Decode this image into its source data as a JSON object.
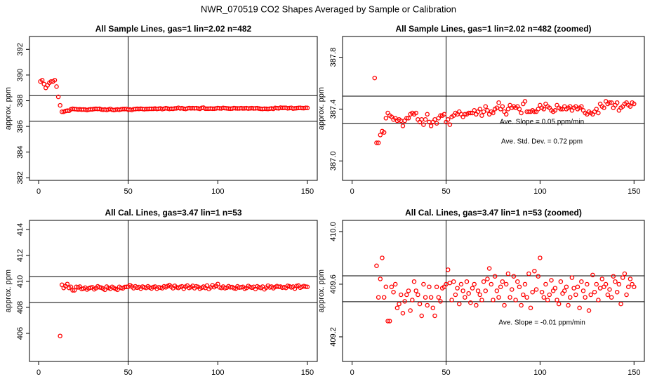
{
  "suptitle": "NWR_070519  CO2 Shapes Averaged by Sample or Calibration",
  "chart_data": [
    {
      "type": "scatter",
      "title": "All Sample Lines, gas=1 lin=2.02 n=482",
      "y_label": "approx. ppm",
      "color": "#ff0000",
      "xlim": [
        -5.1,
        155.5
      ],
      "ylim": [
        381.8,
        393
      ],
      "xticks": [
        0,
        50,
        100,
        150
      ],
      "yticks": [
        382,
        384,
        386,
        388,
        390,
        392
      ],
      "hlines": [
        388.4,
        386.4
      ],
      "vline": 50,
      "annotations": [],
      "x": [
        1,
        2,
        3,
        4,
        5,
        6,
        7,
        8,
        9,
        10,
        11,
        12,
        13,
        14,
        15,
        16,
        17,
        18,
        19,
        20,
        21,
        22,
        23,
        24,
        25,
        26,
        27,
        28,
        29,
        30,
        31,
        32,
        33,
        34,
        35,
        36,
        37,
        38,
        39,
        40,
        41,
        42,
        43,
        44,
        45,
        46,
        47,
        48,
        49,
        50,
        51,
        52,
        53,
        54,
        55,
        56,
        57,
        58,
        59,
        60,
        61,
        62,
        63,
        64,
        65,
        66,
        67,
        68,
        69,
        70,
        71,
        72,
        73,
        74,
        75,
        76,
        77,
        78,
        79,
        80,
        81,
        82,
        83,
        84,
        85,
        86,
        87,
        88,
        89,
        90,
        91,
        92,
        93,
        94,
        95,
        96,
        97,
        98,
        99,
        100,
        101,
        102,
        103,
        104,
        105,
        106,
        107,
        108,
        109,
        110,
        111,
        112,
        113,
        114,
        115,
        116,
        117,
        118,
        119,
        120,
        121,
        122,
        123,
        124,
        125,
        126,
        127,
        128,
        129,
        130,
        131,
        132,
        133,
        134,
        135,
        136,
        137,
        138,
        139,
        140,
        141,
        142,
        143,
        144,
        145,
        146,
        147,
        148,
        149,
        150
      ],
      "values": [
        389.5,
        389.6,
        389.3,
        389.0,
        389.2,
        389.4,
        389.5,
        389.5,
        389.6,
        389.1,
        388.3,
        387.64,
        387.14,
        387.14,
        387.2,
        387.23,
        387.22,
        387.33,
        387.37,
        387.35,
        387.34,
        387.32,
        387.33,
        387.31,
        387.32,
        387.31,
        387.27,
        387.31,
        387.33,
        387.33,
        387.36,
        387.37,
        387.36,
        387.37,
        387.32,
        387.3,
        387.32,
        387.28,
        387.32,
        387.36,
        387.3,
        387.27,
        387.3,
        387.32,
        387.29,
        387.33,
        387.35,
        387.35,
        387.36,
        387.3,
        387.32,
        387.28,
        387.34,
        387.35,
        387.37,
        387.36,
        387.38,
        387.36,
        387.34,
        387.36,
        387.36,
        387.37,
        387.37,
        387.37,
        387.39,
        387.36,
        387.38,
        387.4,
        387.35,
        387.38,
        387.42,
        387.39,
        387.36,
        387.38,
        387.37,
        387.4,
        387.41,
        387.45,
        387.4,
        387.42,
        387.38,
        387.36,
        387.4,
        387.43,
        387.41,
        387.42,
        387.41,
        387.42,
        387.4,
        387.37,
        387.44,
        387.46,
        387.38,
        387.38,
        387.38,
        387.39,
        387.38,
        387.38,
        387.4,
        387.43,
        387.41,
        387.4,
        387.44,
        387.42,
        387.41,
        387.39,
        387.38,
        387.39,
        387.43,
        387.41,
        387.4,
        387.4,
        387.42,
        387.4,
        387.41,
        387.42,
        387.39,
        387.41,
        387.42,
        387.4,
        387.41,
        387.42,
        387.39,
        387.37,
        387.36,
        387.38,
        387.37,
        387.36,
        387.38,
        387.4,
        387.37,
        387.44,
        387.42,
        387.41,
        387.46,
        387.44,
        387.45,
        387.45,
        387.41,
        387.43,
        387.45,
        387.39,
        387.41,
        387.42,
        387.44,
        387.45,
        387.43,
        387.42,
        387.45,
        387.44
      ]
    },
    {
      "type": "scatter",
      "title": "All Sample Lines, gas=1 lin=2.02 n=482 (zoomed)",
      "y_label": "approx. ppm",
      "color": "#ff0000",
      "xlim": [
        -5.1,
        155.5
      ],
      "ylim": [
        386.85,
        387.96
      ],
      "xticks": [
        0,
        50,
        100,
        150
      ],
      "yticks": [
        {
          "value": 387,
          "label": "387.0"
        },
        {
          "value": 387.4,
          "label": "387.4"
        },
        {
          "value": 387.8,
          "label": "387.8"
        }
      ],
      "hlines": [
        387.5,
        387.29
      ],
      "vline": 50,
      "annotations": [
        "Ave. Slope =  0.05  ppm/min",
        "Ave. Std. Dev. =  0.72  ppm"
      ],
      "x": [
        12,
        13,
        14,
        15,
        16,
        17,
        18,
        19,
        20,
        21,
        22,
        23,
        24,
        25,
        26,
        27,
        28,
        29,
        30,
        31,
        32,
        33,
        34,
        35,
        36,
        37,
        38,
        39,
        40,
        41,
        42,
        43,
        44,
        45,
        46,
        47,
        48,
        49,
        50,
        51,
        52,
        53,
        54,
        55,
        56,
        57,
        58,
        59,
        60,
        61,
        62,
        63,
        64,
        65,
        66,
        67,
        68,
        69,
        70,
        71,
        72,
        73,
        74,
        75,
        76,
        77,
        78,
        79,
        80,
        81,
        82,
        83,
        84,
        85,
        86,
        87,
        88,
        89,
        90,
        91,
        92,
        93,
        94,
        95,
        96,
        97,
        98,
        99,
        100,
        101,
        102,
        103,
        104,
        105,
        106,
        107,
        108,
        109,
        110,
        111,
        112,
        113,
        114,
        115,
        116,
        117,
        118,
        119,
        120,
        121,
        122,
        123,
        124,
        125,
        126,
        127,
        128,
        129,
        130,
        131,
        132,
        133,
        134,
        135,
        136,
        137,
        138,
        139,
        140,
        141,
        142,
        143,
        144,
        145,
        146,
        147,
        148,
        149,
        150
      ],
      "values": [
        387.64,
        387.14,
        387.14,
        387.2,
        387.23,
        387.22,
        387.33,
        387.37,
        387.35,
        387.34,
        387.32,
        387.33,
        387.31,
        387.32,
        387.31,
        387.27,
        387.31,
        387.33,
        387.33,
        387.36,
        387.37,
        387.36,
        387.37,
        387.32,
        387.3,
        387.32,
        387.28,
        387.32,
        387.36,
        387.3,
        387.27,
        387.3,
        387.32,
        387.29,
        387.33,
        387.35,
        387.35,
        387.36,
        387.3,
        387.32,
        387.28,
        387.34,
        387.35,
        387.37,
        387.36,
        387.38,
        387.36,
        387.34,
        387.36,
        387.36,
        387.37,
        387.37,
        387.37,
        387.39,
        387.36,
        387.38,
        387.4,
        387.35,
        387.38,
        387.42,
        387.39,
        387.36,
        387.38,
        387.37,
        387.4,
        387.41,
        387.45,
        387.4,
        387.42,
        387.38,
        387.36,
        387.4,
        387.43,
        387.41,
        387.42,
        387.41,
        387.42,
        387.4,
        387.37,
        387.44,
        387.46,
        387.38,
        387.38,
        387.38,
        387.39,
        387.38,
        387.38,
        387.4,
        387.43,
        387.41,
        387.4,
        387.44,
        387.42,
        387.41,
        387.39,
        387.38,
        387.39,
        387.43,
        387.41,
        387.4,
        387.4,
        387.42,
        387.4,
        387.41,
        387.42,
        387.39,
        387.41,
        387.42,
        387.4,
        387.41,
        387.42,
        387.39,
        387.37,
        387.36,
        387.38,
        387.37,
        387.36,
        387.38,
        387.4,
        387.37,
        387.44,
        387.42,
        387.41,
        387.46,
        387.44,
        387.45,
        387.45,
        387.41,
        387.43,
        387.45,
        387.39,
        387.41,
        387.42,
        387.44,
        387.45,
        387.43,
        387.42,
        387.45,
        387.44
      ]
    },
    {
      "type": "scatter",
      "title": "All Cal. Lines, gas=3.47 lin=1 n=53",
      "y_label": "approx. ppm",
      "color": "#ff0000",
      "xlim": [
        -5.1,
        155.5
      ],
      "ylim": [
        403.84,
        414.7
      ],
      "xticks": [
        0,
        50,
        100,
        150
      ],
      "yticks": [
        406,
        408,
        410,
        412,
        414
      ],
      "hlines": [
        410.38,
        408.38
      ],
      "vline": 50,
      "annotations": [],
      "x": [
        12,
        13,
        14,
        15,
        16,
        17,
        18,
        19,
        20,
        21,
        22,
        23,
        24,
        25,
        26,
        27,
        28,
        29,
        30,
        31,
        32,
        33,
        34,
        35,
        36,
        37,
        38,
        39,
        40,
        41,
        42,
        43,
        44,
        45,
        46,
        47,
        48,
        49,
        50,
        51,
        52,
        53,
        54,
        55,
        56,
        57,
        58,
        59,
        60,
        61,
        62,
        63,
        64,
        65,
        66,
        67,
        68,
        69,
        70,
        71,
        72,
        73,
        74,
        75,
        76,
        77,
        78,
        79,
        80,
        81,
        82,
        83,
        84,
        85,
        86,
        87,
        88,
        89,
        90,
        91,
        92,
        93,
        94,
        95,
        96,
        97,
        98,
        99,
        100,
        101,
        102,
        103,
        104,
        105,
        106,
        107,
        108,
        109,
        110,
        111,
        112,
        113,
        114,
        115,
        116,
        117,
        118,
        119,
        120,
        121,
        122,
        123,
        124,
        125,
        126,
        127,
        128,
        129,
        130,
        131,
        132,
        133,
        134,
        135,
        136,
        137,
        138,
        139,
        140,
        141,
        142,
        143,
        144,
        145,
        146,
        147,
        148,
        149,
        150
      ],
      "values": [
        405.8,
        409.74,
        409.5,
        409.64,
        409.8,
        409.5,
        409.58,
        409.32,
        409.32,
        409.58,
        409.54,
        409.6,
        409.42,
        409.45,
        409.52,
        409.38,
        409.47,
        409.52,
        409.55,
        409.4,
        409.48,
        409.62,
        409.55,
        409.52,
        409.45,
        409.36,
        409.6,
        409.5,
        409.44,
        409.58,
        409.5,
        409.42,
        409.36,
        409.58,
        409.5,
        409.47,
        409.57,
        409.58,
        409.6,
        409.71,
        409.61,
        409.48,
        409.62,
        409.52,
        409.57,
        409.45,
        409.6,
        409.55,
        409.5,
        409.62,
        409.53,
        409.46,
        409.57,
        409.6,
        409.44,
        409.55,
        409.52,
        409.48,
        409.62,
        409.55,
        409.64,
        409.72,
        409.6,
        409.48,
        409.66,
        409.55,
        409.5,
        409.58,
        409.62,
        409.44,
        409.6,
        409.68,
        409.5,
        409.56,
        409.66,
        409.48,
        409.62,
        409.58,
        409.44,
        409.52,
        409.6,
        409.5,
        409.68,
        409.42,
        409.54,
        409.7,
        409.56,
        409.66,
        409.8,
        409.54,
        409.5,
        409.6,
        409.48,
        409.52,
        409.63,
        409.55,
        409.57,
        409.48,
        409.45,
        409.62,
        409.53,
        409.55,
        409.58,
        409.44,
        409.5,
        409.65,
        409.57,
        409.52,
        409.58,
        409.42,
        409.62,
        409.55,
        409.5,
        409.6,
        409.4,
        409.52,
        409.67,
        409.54,
        409.6,
        409.48,
        409.57,
        409.64,
        409.58,
        409.6,
        409.52,
        409.56,
        409.5,
        409.66,
        409.62,
        409.54,
        409.6,
        409.45,
        409.65,
        409.68,
        409.52,
        409.58,
        409.64,
        409.6,
        409.58
      ]
    },
    {
      "type": "scatter",
      "title": "All Cal. Lines, gas=3.47 lin=1 n=53 (zoomed)",
      "y_label": "approx. ppm",
      "color": "#ff0000",
      "xlim": [
        -5.1,
        155.5
      ],
      "ylim": [
        409.013,
        410.085
      ],
      "xticks": [
        0,
        50,
        100,
        150
      ],
      "yticks": [
        {
          "value": 409.2,
          "label": "409.2"
        },
        {
          "value": 409.6,
          "label": "409.6"
        },
        {
          "value": 410,
          "label": "410.0"
        }
      ],
      "hlines": [
        409.664,
        409.467
      ],
      "vline": 50,
      "annotations": [
        "Ave. Slope =  -0.01  ppm/min"
      ],
      "x": [
        13,
        14,
        15,
        16,
        17,
        18,
        19,
        20,
        21,
        22,
        23,
        24,
        25,
        26,
        27,
        28,
        29,
        30,
        31,
        32,
        33,
        34,
        35,
        36,
        37,
        38,
        39,
        40,
        41,
        42,
        43,
        44,
        45,
        46,
        47,
        48,
        49,
        50,
        51,
        52,
        53,
        54,
        55,
        56,
        57,
        58,
        59,
        60,
        61,
        62,
        63,
        64,
        65,
        66,
        67,
        68,
        69,
        70,
        71,
        72,
        73,
        74,
        75,
        76,
        77,
        78,
        79,
        80,
        81,
        82,
        83,
        84,
        85,
        86,
        87,
        88,
        89,
        90,
        91,
        92,
        93,
        94,
        95,
        96,
        97,
        98,
        99,
        100,
        101,
        102,
        103,
        104,
        105,
        106,
        107,
        108,
        109,
        110,
        111,
        112,
        113,
        114,
        115,
        116,
        117,
        118,
        119,
        120,
        121,
        122,
        123,
        124,
        125,
        126,
        127,
        128,
        129,
        130,
        131,
        132,
        133,
        134,
        135,
        136,
        137,
        138,
        139,
        140,
        141,
        142,
        143,
        144,
        145,
        146,
        147,
        148,
        149,
        150
      ],
      "values": [
        409.74,
        409.5,
        409.64,
        409.8,
        409.5,
        409.58,
        409.32,
        409.32,
        409.58,
        409.54,
        409.6,
        409.42,
        409.45,
        409.52,
        409.38,
        409.47,
        409.52,
        409.55,
        409.4,
        409.48,
        409.62,
        409.55,
        409.52,
        409.45,
        409.36,
        409.6,
        409.5,
        409.44,
        409.58,
        409.5,
        409.42,
        409.36,
        409.58,
        409.5,
        409.47,
        409.57,
        409.58,
        409.6,
        409.71,
        409.61,
        409.48,
        409.62,
        409.52,
        409.57,
        409.45,
        409.6,
        409.55,
        409.5,
        409.62,
        409.53,
        409.46,
        409.57,
        409.6,
        409.44,
        409.55,
        409.52,
        409.48,
        409.62,
        409.55,
        409.64,
        409.72,
        409.6,
        409.48,
        409.66,
        409.55,
        409.5,
        409.58,
        409.62,
        409.44,
        409.6,
        409.68,
        409.5,
        409.56,
        409.66,
        409.48,
        409.62,
        409.58,
        409.44,
        409.52,
        409.6,
        409.5,
        409.68,
        409.42,
        409.54,
        409.7,
        409.56,
        409.66,
        409.8,
        409.54,
        409.5,
        409.6,
        409.48,
        409.52,
        409.63,
        409.55,
        409.57,
        409.48,
        409.45,
        409.62,
        409.53,
        409.55,
        409.58,
        409.44,
        409.5,
        409.65,
        409.57,
        409.52,
        409.58,
        409.42,
        409.62,
        409.55,
        409.5,
        409.6,
        409.4,
        409.52,
        409.67,
        409.54,
        409.6,
        409.48,
        409.57,
        409.64,
        409.58,
        409.6,
        409.52,
        409.56,
        409.5,
        409.66,
        409.62,
        409.54,
        409.6,
        409.45,
        409.65,
        409.68,
        409.52,
        409.58,
        409.64,
        409.6,
        409.58
      ]
    }
  ]
}
